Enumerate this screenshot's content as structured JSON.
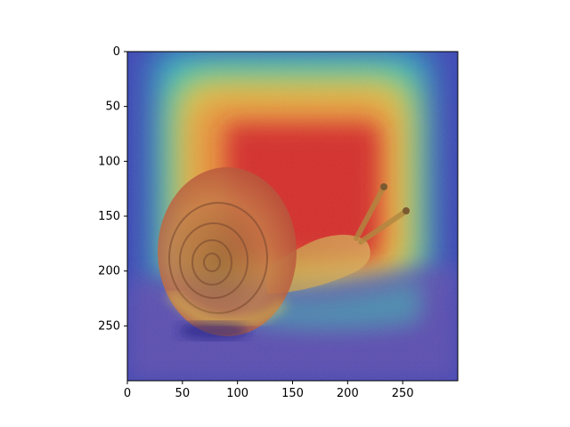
{
  "chart_data": {
    "type": "heatmap",
    "title": "",
    "xlabel": "",
    "ylabel": "",
    "image_size": [
      300,
      300
    ],
    "xlim": [
      0,
      300
    ],
    "ylim": [
      300,
      0
    ],
    "x_ticks": [
      0,
      50,
      100,
      150,
      200,
      250
    ],
    "y_ticks": [
      0,
      50,
      100,
      150,
      200,
      250
    ],
    "colormap": "jet",
    "overlay": "heatmap over a photo of a snail on sand",
    "activation_peak": {
      "x_range": [
        100,
        220
      ],
      "y_range": [
        70,
        200
      ]
    },
    "colors": {
      "jet_low": "#3a3ab0",
      "jet_mid": "#2ec9c0",
      "jet_yellow": "#e8d84a",
      "jet_high": "#d9302a",
      "sand": "#6a58a8",
      "shell": "#b8683a"
    }
  }
}
